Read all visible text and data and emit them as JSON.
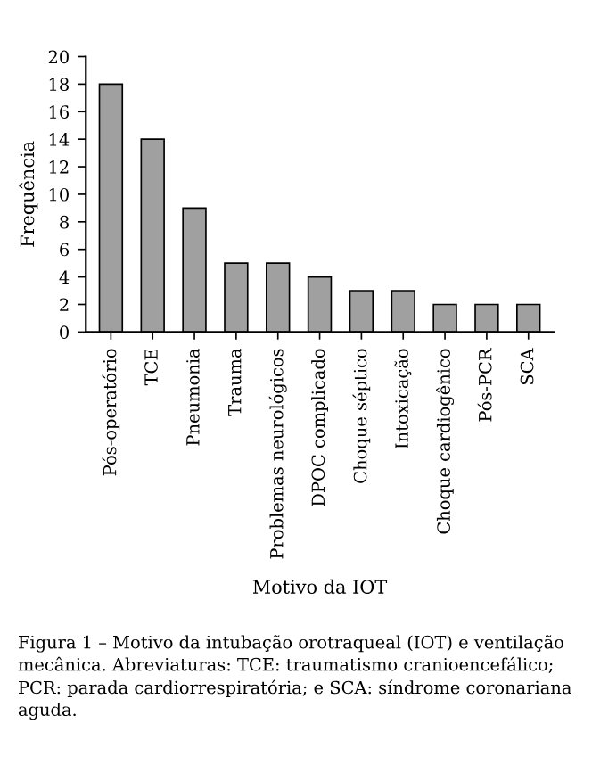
{
  "chart_data": {
    "type": "bar",
    "xlabel": "Motivo da IOT",
    "ylabel": "Frequência",
    "categories": [
      "Pós-operatório",
      "TCE",
      "Pneumonia",
      "Trauma",
      "Problemas neurológicos",
      "DPOC complicado",
      "Choque séptico",
      "Intoxicação",
      "Choque cardiogênico",
      "Pós-PCR",
      "SCA"
    ],
    "values": [
      18,
      14,
      9,
      5,
      5,
      4,
      3,
      3,
      2,
      2,
      2
    ],
    "color": "#a0a0a0",
    "ylim": [
      0,
      20
    ],
    "yticks": [
      0,
      2,
      4,
      6,
      8,
      10,
      12,
      14,
      16,
      18,
      20
    ],
    "grid": false,
    "annotations": [
      "Figura 1 – Motivo da intubação orotraqueal (IOT) e ventilação mecânica. Abreviaturas: TCE: traumatismo cranioencefálico; PCR: parada cardiorrespiratória; e SCA: síndrome coronariana aguda."
    ]
  }
}
